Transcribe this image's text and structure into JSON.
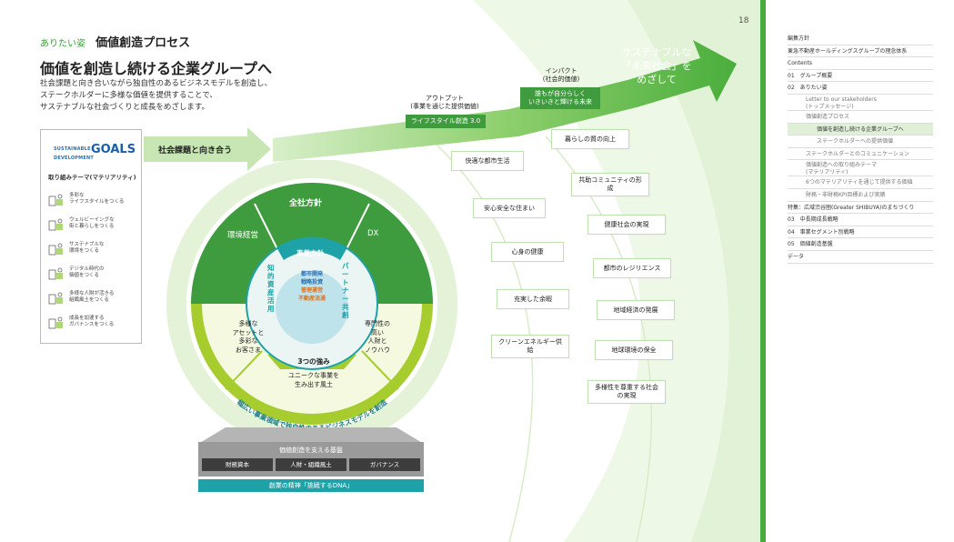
{
  "page_number": "18",
  "section_label": "ありたい姿",
  "section_title": "価値創造プロセス",
  "headline": "価値を創造し続ける企業グループへ",
  "intro": [
    "社会課題と向き合いながら独自性のあるビジネスモデルを創造し、",
    "ステークホルダーに多様な価値を提供することで、",
    "サステナブルな社会づくりと成長をめざします。"
  ],
  "sdg": {
    "logo_line1": "SUSTAINABLE",
    "logo_line2": "DEVELOPMENT",
    "logo_goals": "GOALS",
    "materiality_title": "取り組みテーマ(マテリアリティ)",
    "items": [
      {
        "icon": "city-people-icon",
        "lines": [
          "多彩な",
          "ライフスタイルをつくる"
        ]
      },
      {
        "icon": "building-wellbeing-icon",
        "lines": [
          "ウェルビーイングな",
          "街と暮らしをつくる"
        ]
      },
      {
        "icon": "leaf-environment-icon",
        "lines": [
          "サステナブルな",
          "環境をつくる"
        ]
      },
      {
        "icon": "digital-device-icon",
        "lines": [
          "デジタル時代の",
          "価値をつくる"
        ]
      },
      {
        "icon": "people-talent-icon",
        "lines": [
          "多様な人財が活きる",
          "組織風土をつくる"
        ]
      },
      {
        "icon": "growth-hand-icon",
        "lines": [
          "成長を加速する",
          "ガバナンスをつくる"
        ]
      }
    ]
  },
  "social_issues_label": "社会課題と向き合う",
  "circle": {
    "outer_top": "全社方針",
    "outer_left": "環境経営",
    "outer_right": "DX",
    "center_top": "事業方針",
    "left_vertical": "知的資産活用",
    "right_vertical": "パートナー共創",
    "core_items": [
      "都市開発",
      "戦略投資",
      "管理運営",
      "不動産流通"
    ],
    "core_colors": [
      "#2a6fb3",
      "#2a6fb3",
      "#e0731e",
      "#e0731e"
    ],
    "strength_left": [
      "多様な",
      "アセットと",
      "多彩な",
      "お客さま"
    ],
    "strength_right": [
      "専門性の",
      "高い",
      "人財と",
      "ノウハウ"
    ],
    "strength_center": "3つの強み",
    "strength_bottom": [
      "ユニークな事業を",
      "生み出す風土"
    ],
    "ring_text": "幅広い事業領域で独自性のあるビジネスモデルを創造"
  },
  "output": {
    "title_line1": "アウトプット",
    "title_line2": "(事業を通じた提供価値)",
    "pill": "ライフスタイル創造 3.0"
  },
  "impact": {
    "title_line1": "インパクト",
    "title_line2": "(社会的価値)",
    "pill_line1": "誰もが自分らしく",
    "pill_line2": "いきいきと輝ける未来"
  },
  "goal_arrow": [
    "サステナブルな",
    "「未来社会」を",
    "めざして"
  ],
  "values_left": [
    "快適な都市生活",
    "安心安全な住まい",
    "心身の健康",
    "充実した余暇",
    "クリーンエネルギー供給"
  ],
  "values_right": [
    "暮らしの質の向上",
    "共助コミュニティの形成",
    "健康社会の実現",
    "都市のレジリエンス",
    "地域経済の発展",
    "地球環境の保全",
    "多様性を尊重する社会の実現"
  ],
  "base": {
    "title": "価値創造を支える基盤",
    "cells": [
      "財務資本",
      "人財・組織風土",
      "ガバナンス"
    ],
    "dna": "創業の精神「挑戦するDNA」"
  },
  "index": [
    {
      "label": "編集方針",
      "level": 0
    },
    {
      "label": "東急不動産ホールディングスグループの理念体系",
      "level": 0
    },
    {
      "label": "Contents",
      "level": 0
    },
    {
      "label": "01　グループ概要",
      "level": 0
    },
    {
      "label": "02　ありたい姿",
      "level": 0
    },
    {
      "label": "Letter to our stakeholders",
      "label2": "(トップメッセージ)",
      "level": 1
    },
    {
      "label": "価値創造プロセス",
      "level": 1
    },
    {
      "label": "価値を創造し続ける企業グループへ",
      "level": 2,
      "active": true
    },
    {
      "label": "ステークホルダーへの提供価値",
      "level": 2
    },
    {
      "label": "ステークホルダーとのコミュニケーション",
      "level": 1
    },
    {
      "label": "価値創造への取り組みテーマ",
      "label2": "(マテリアリティ)",
      "level": 1
    },
    {
      "label": "6つのマテリアリティを通じて提供する価値",
      "level": 1
    },
    {
      "label": "財務・非財務KPI目標および実績",
      "level": 1
    },
    {
      "label": "特集：広域渋谷圏(Greater SHIBUYA)のまちづくり",
      "level": 0
    },
    {
      "label": "03　中長期成長戦略",
      "level": 0
    },
    {
      "label": "04　事業セグメント別戦略",
      "level": 0
    },
    {
      "label": "05　価値創造基盤",
      "level": 0
    },
    {
      "label": "データ",
      "level": 0
    }
  ],
  "colors": {
    "green_dark": "#3e9b3e",
    "green_mid": "#6cbf4f",
    "lime": "#a6cc2e",
    "teal": "#1fa2a7",
    "core_bg": "#bfe3ea"
  }
}
